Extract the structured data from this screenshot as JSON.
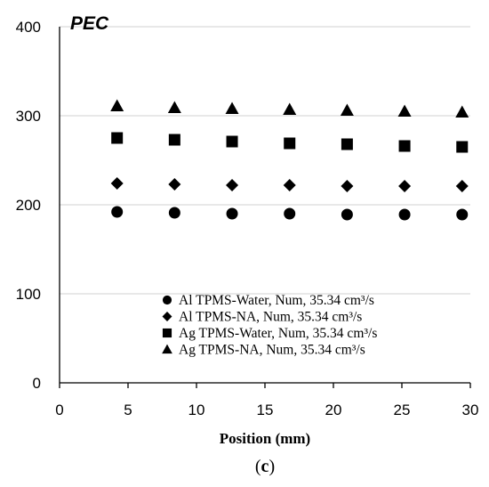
{
  "chart_data": {
    "type": "scatter",
    "ylabel": "PEC",
    "xlabel": "Position (mm)",
    "caption_letter": "c",
    "xlim": [
      0,
      30
    ],
    "ylim": [
      0,
      400
    ],
    "xticks": [
      0,
      5,
      10,
      15,
      20,
      25,
      30
    ],
    "yticks": [
      0,
      100,
      200,
      300,
      400
    ],
    "grid": "horizontal",
    "legend_position": "bottom-right",
    "series": [
      {
        "name": "Al TPMS-Water, Num, 35.34 cm³/s",
        "marker": "circle",
        "x": [
          4.2,
          8.4,
          12.6,
          16.8,
          21.0,
          25.2,
          29.4
        ],
        "y": [
          192,
          191,
          190,
          190,
          189,
          189,
          189
        ]
      },
      {
        "name": "Al TPMS-NA, Num, 35.34 cm³/s",
        "marker": "diamond",
        "x": [
          4.2,
          8.4,
          12.6,
          16.8,
          21.0,
          25.2,
          29.4
        ],
        "y": [
          224,
          223,
          222,
          222,
          221,
          221,
          221
        ]
      },
      {
        "name": "Ag TPMS-Water, Num, 35.34 cm³/s",
        "marker": "square",
        "x": [
          4.2,
          8.4,
          12.6,
          16.8,
          21.0,
          25.2,
          29.4
        ],
        "y": [
          275,
          273,
          271,
          269,
          268,
          266,
          265
        ]
      },
      {
        "name": "Ag TPMS-NA, Num, 35.34 cm³/s",
        "marker": "triangle",
        "x": [
          4.2,
          8.4,
          12.6,
          16.8,
          21.0,
          25.2,
          29.4
        ],
        "y": [
          311,
          309,
          308,
          307,
          306,
          305,
          304
        ]
      }
    ],
    "colors": {
      "marker": "#000000",
      "grid": "#d9d9d9",
      "axis": "#000000"
    }
  }
}
